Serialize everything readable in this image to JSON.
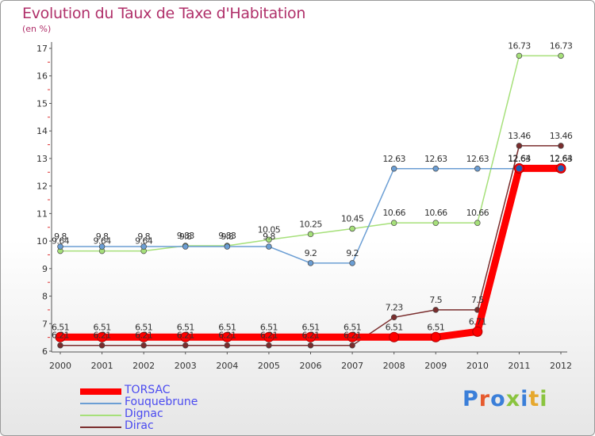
{
  "header": {
    "title": "Evolution du Taux de Taxe d'Habitation",
    "unit": "(en %)"
  },
  "logo": {
    "text": "Proxiti",
    "colors": [
      "#3b7fd9",
      "#e65a2e",
      "#3b7fd9",
      "#8ac43f",
      "#3b7fd9",
      "#e6a82e",
      "#8ac43f"
    ]
  },
  "chart_data": {
    "type": "line",
    "categories": [
      "2000",
      "2001",
      "2002",
      "2003",
      "2004",
      "2005",
      "2006",
      "2007",
      "2008",
      "2009",
      "2010",
      "2011",
      "2012"
    ],
    "ylim": [
      6,
      17
    ],
    "yticks": [
      "6",
      "7",
      "8",
      "9",
      "10",
      "11",
      "12",
      "13",
      "14",
      "15",
      "16",
      "17"
    ],
    "xlabel": "",
    "ylabel": "(en %)",
    "grid": false,
    "legend_position": "bottom-left",
    "series": [
      {
        "name": "TORSAC",
        "color": "#ff0000",
        "values": [
          6.51,
          6.51,
          6.51,
          6.51,
          6.51,
          6.51,
          6.51,
          6.51,
          6.51,
          6.51,
          6.71,
          12.64,
          12.64
        ],
        "labels": [
          "6.51",
          "6.51",
          "6.51",
          "6.51",
          "6.51",
          "6.51",
          "6.51",
          "6.51",
          "6.51",
          "6.51",
          "6.71",
          "12.64",
          "12.64"
        ]
      },
      {
        "name": "Fouquebrune",
        "color": "#6b9ed4",
        "values": [
          9.8,
          9.8,
          9.8,
          9.8,
          9.8,
          9.8,
          9.2,
          9.2,
          12.63,
          12.63,
          12.63,
          12.63,
          12.63
        ],
        "labels": [
          "9.8",
          "9.8",
          "9.8",
          "9.8",
          "9.8",
          "9.8",
          "9.2",
          "9.2",
          "12.63",
          "12.63",
          "12.63",
          "12.63",
          "12.63"
        ]
      },
      {
        "name": "Dignac",
        "color": "#a6e07a",
        "values": [
          9.64,
          9.64,
          9.64,
          9.83,
          9.83,
          10.05,
          10.25,
          10.45,
          10.66,
          10.66,
          10.66,
          16.73,
          16.73
        ],
        "labels": [
          "9.64",
          "9.64",
          "9.64",
          "9.83",
          "9.83",
          "10.05",
          "10.25",
          "10.45",
          "10.66",
          "10.66",
          "10.66",
          "16.73",
          "16.73"
        ]
      },
      {
        "name": "Dirac",
        "color": "#7a2d2d",
        "values": [
          6.21,
          6.21,
          6.21,
          6.21,
          6.21,
          6.21,
          6.21,
          6.21,
          7.23,
          7.5,
          7.5,
          13.46,
          13.46
        ],
        "labels": [
          "6.21",
          "6.21",
          "6.21",
          "6.21",
          "6.21",
          "6.21",
          "6.21",
          "6.21",
          "7.23",
          "7.5",
          "7.5",
          "13.46",
          "13.46"
        ]
      }
    ]
  }
}
